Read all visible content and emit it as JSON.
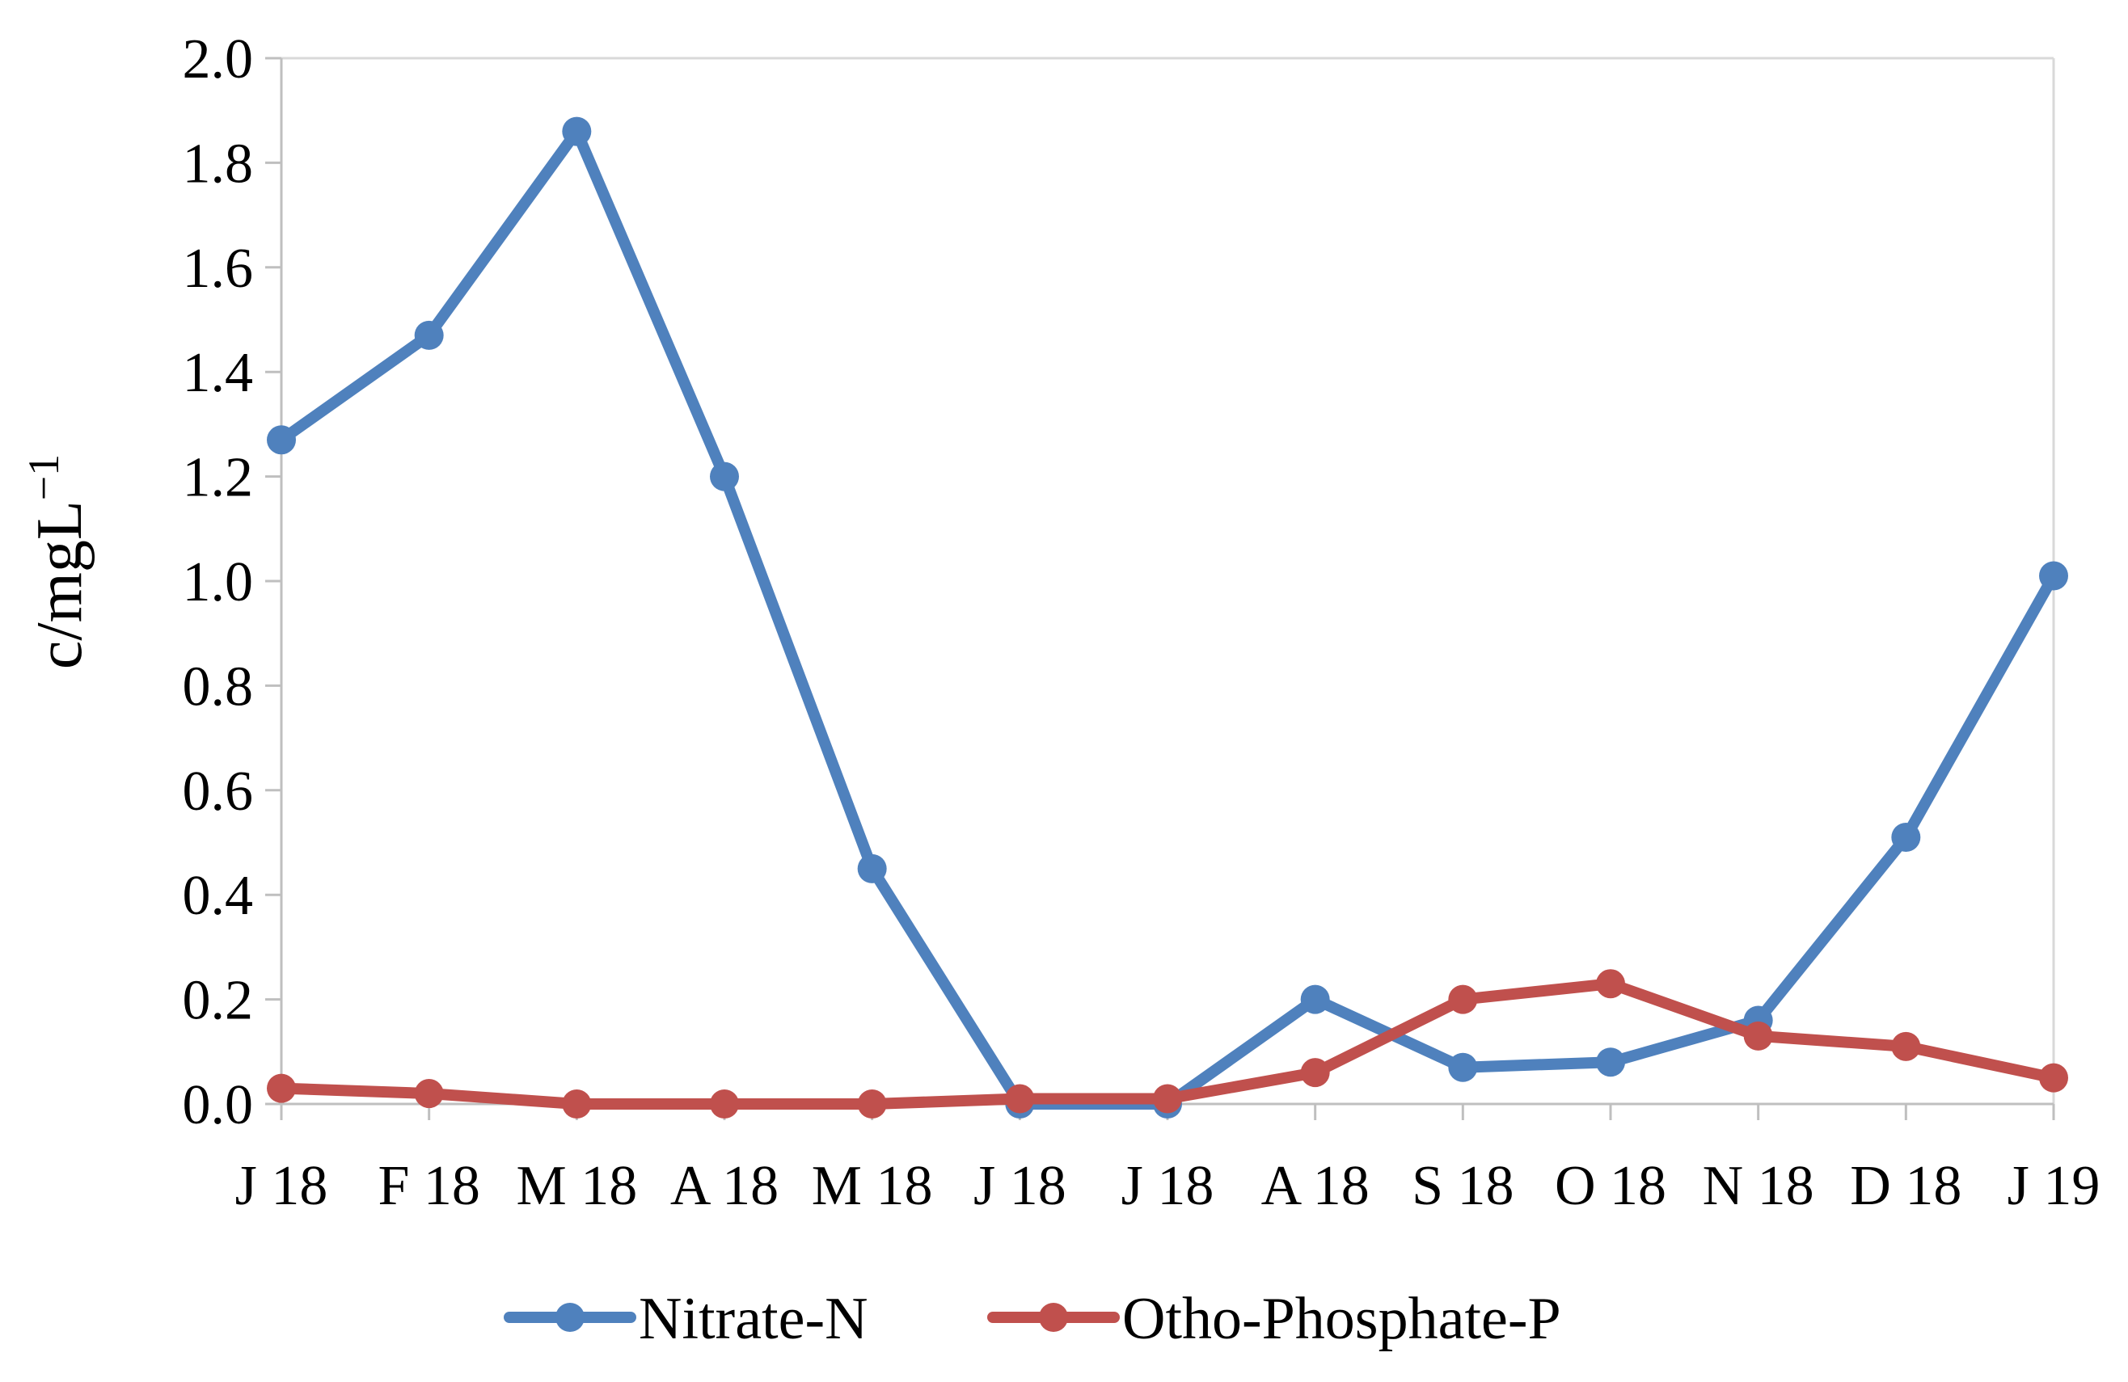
{
  "chart_data": {
    "type": "line",
    "title": "",
    "xlabel": "",
    "ylabel": "c/mgL",
    "ylabel_superscript": "−1",
    "categories": [
      "J 18",
      "F 18",
      "M 18",
      "A 18",
      "M 18",
      "J 18",
      "J 18",
      "A 18",
      "S 18",
      "O 18",
      "N 18",
      "D 18",
      "J 19"
    ],
    "yticks": [
      "0.0",
      "0.2",
      "0.4",
      "0.6",
      "0.8",
      "1.0",
      "1.2",
      "1.4",
      "1.6",
      "1.8",
      "2.0"
    ],
    "ylim": [
      0,
      2.0
    ],
    "grid": false,
    "legend_position": "bottom",
    "series": [
      {
        "name": "Nitrate-N",
        "color": "#4F81BD",
        "values": [
          1.27,
          1.47,
          1.86,
          1.2,
          0.45,
          0.0,
          0.0,
          0.2,
          0.07,
          0.08,
          0.16,
          0.51,
          1.01
        ]
      },
      {
        "name": "Otho-Phosphate-P",
        "color": "#C0504D",
        "values": [
          0.03,
          0.02,
          0.0,
          0.0,
          0.0,
          0.01,
          0.01,
          0.06,
          0.2,
          0.23,
          0.13,
          0.11,
          0.05
        ]
      }
    ]
  }
}
